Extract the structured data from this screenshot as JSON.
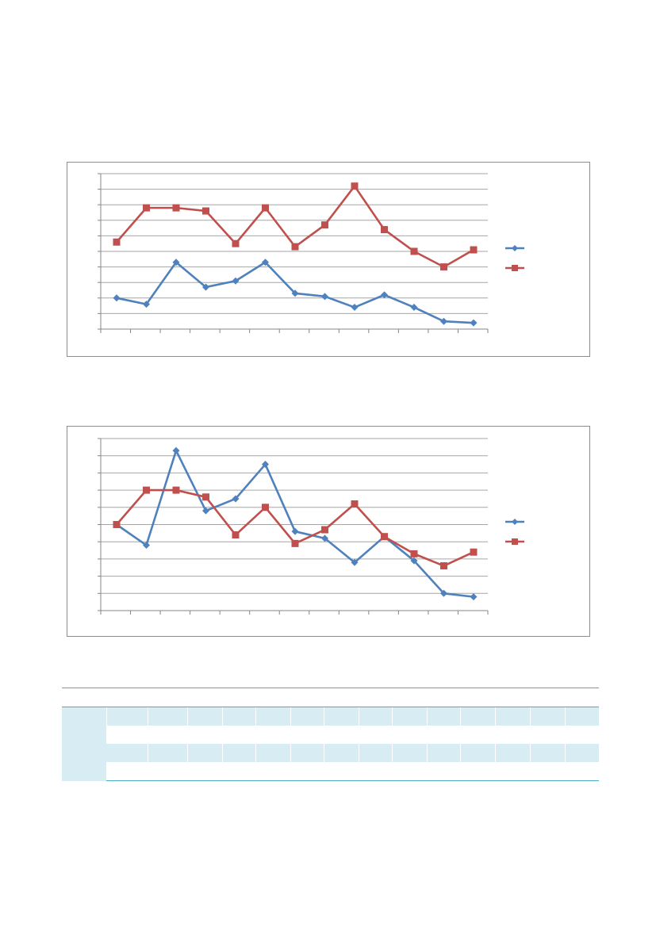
{
  "charts": [
    {
      "id": "chart1",
      "chart_data": {
        "type": "line",
        "categories": [
          "",
          "",
          "",
          "",
          "",
          "",
          "",
          "",
          "",
          "",
          "",
          "",
          ""
        ],
        "ylim": [
          0,
          10
        ],
        "grid": true,
        "legend_position": "right",
        "series": [
          {
            "color": "#4f81bd",
            "marker": "diamond",
            "values": [
              2.0,
              1.6,
              4.3,
              2.7,
              3.1,
              4.3,
              2.3,
              2.1,
              1.4,
              2.2,
              1.4,
              0.5,
              0.4
            ]
          },
          {
            "color": "#c0504d",
            "marker": "square",
            "values": [
              5.6,
              7.8,
              7.8,
              7.6,
              5.5,
              7.8,
              5.3,
              6.7,
              9.2,
              6.4,
              5.0,
              4.0,
              5.1
            ]
          }
        ]
      }
    },
    {
      "id": "chart2",
      "chart_data": {
        "type": "line",
        "categories": [
          "",
          "",
          "",
          "",
          "",
          "",
          "",
          "",
          "",
          "",
          "",
          "",
          ""
        ],
        "ylim": [
          0,
          10
        ],
        "grid": true,
        "legend_position": "right",
        "series": [
          {
            "color": "#4f81bd",
            "marker": "diamond",
            "values": [
              5.0,
              3.8,
              9.3,
              5.8,
              6.5,
              8.5,
              4.6,
              4.2,
              2.8,
              4.3,
              2.9,
              1.0,
              0.8
            ]
          },
          {
            "color": "#c0504d",
            "marker": "square",
            "values": [
              5.0,
              7.0,
              7.0,
              6.6,
              4.4,
              6.0,
              3.9,
              4.7,
              6.2,
              4.3,
              3.3,
              2.6,
              3.4
            ]
          }
        ]
      }
    }
  ],
  "table": {
    "header_color": "#4bacc6",
    "shade_color": "#d8ecf3",
    "columns": 15
  }
}
